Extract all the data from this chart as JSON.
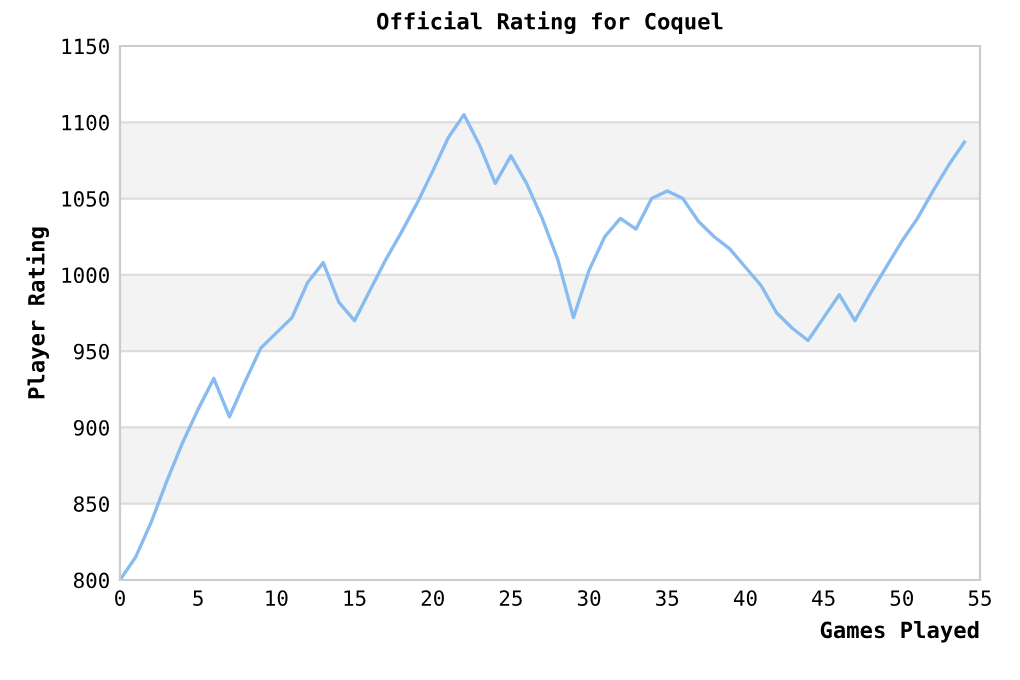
{
  "chart_data": {
    "type": "line",
    "title": "Official Rating for Coquel",
    "xlabel": "Games Played",
    "ylabel": "Player Rating",
    "x": [
      0,
      1,
      2,
      3,
      4,
      5,
      6,
      7,
      8,
      9,
      10,
      11,
      12,
      13,
      14,
      15,
      16,
      17,
      18,
      19,
      20,
      21,
      22,
      23,
      24,
      25,
      26,
      27,
      28,
      29,
      30,
      31,
      32,
      33,
      34,
      35,
      36,
      37,
      38,
      39,
      40,
      41,
      42,
      43,
      44,
      45,
      46,
      47,
      48,
      49,
      50,
      51,
      52,
      53,
      54
    ],
    "series": [
      {
        "color": "#88bbf0",
        "values": [
          800,
          815,
          838,
          865,
          890,
          912,
          932,
          907,
          930,
          952,
          962,
          972,
          995,
          1008,
          982,
          970,
          990,
          1010,
          1028,
          1047,
          1068,
          1090,
          1105,
          1085,
          1060,
          1078,
          1060,
          1037,
          1010,
          972,
          1003,
          1025,
          1037,
          1030,
          1050,
          1055,
          1050,
          1035,
          1025,
          1017,
          1005,
          993,
          975,
          965,
          957,
          972,
          987,
          970,
          988,
          1005,
          1022,
          1037,
          1055,
          1072,
          1087
        ]
      }
    ],
    "xlim": [
      0,
      55
    ],
    "xticks": [
      0,
      5,
      10,
      15,
      20,
      25,
      30,
      35,
      40,
      45,
      50,
      55
    ],
    "ylim": [
      800,
      1150
    ],
    "yticks": [
      800,
      850,
      900,
      950,
      1000,
      1050,
      1100,
      1150
    ],
    "grid": "y",
    "legend": false,
    "marker": "none",
    "line_style": "solid"
  }
}
